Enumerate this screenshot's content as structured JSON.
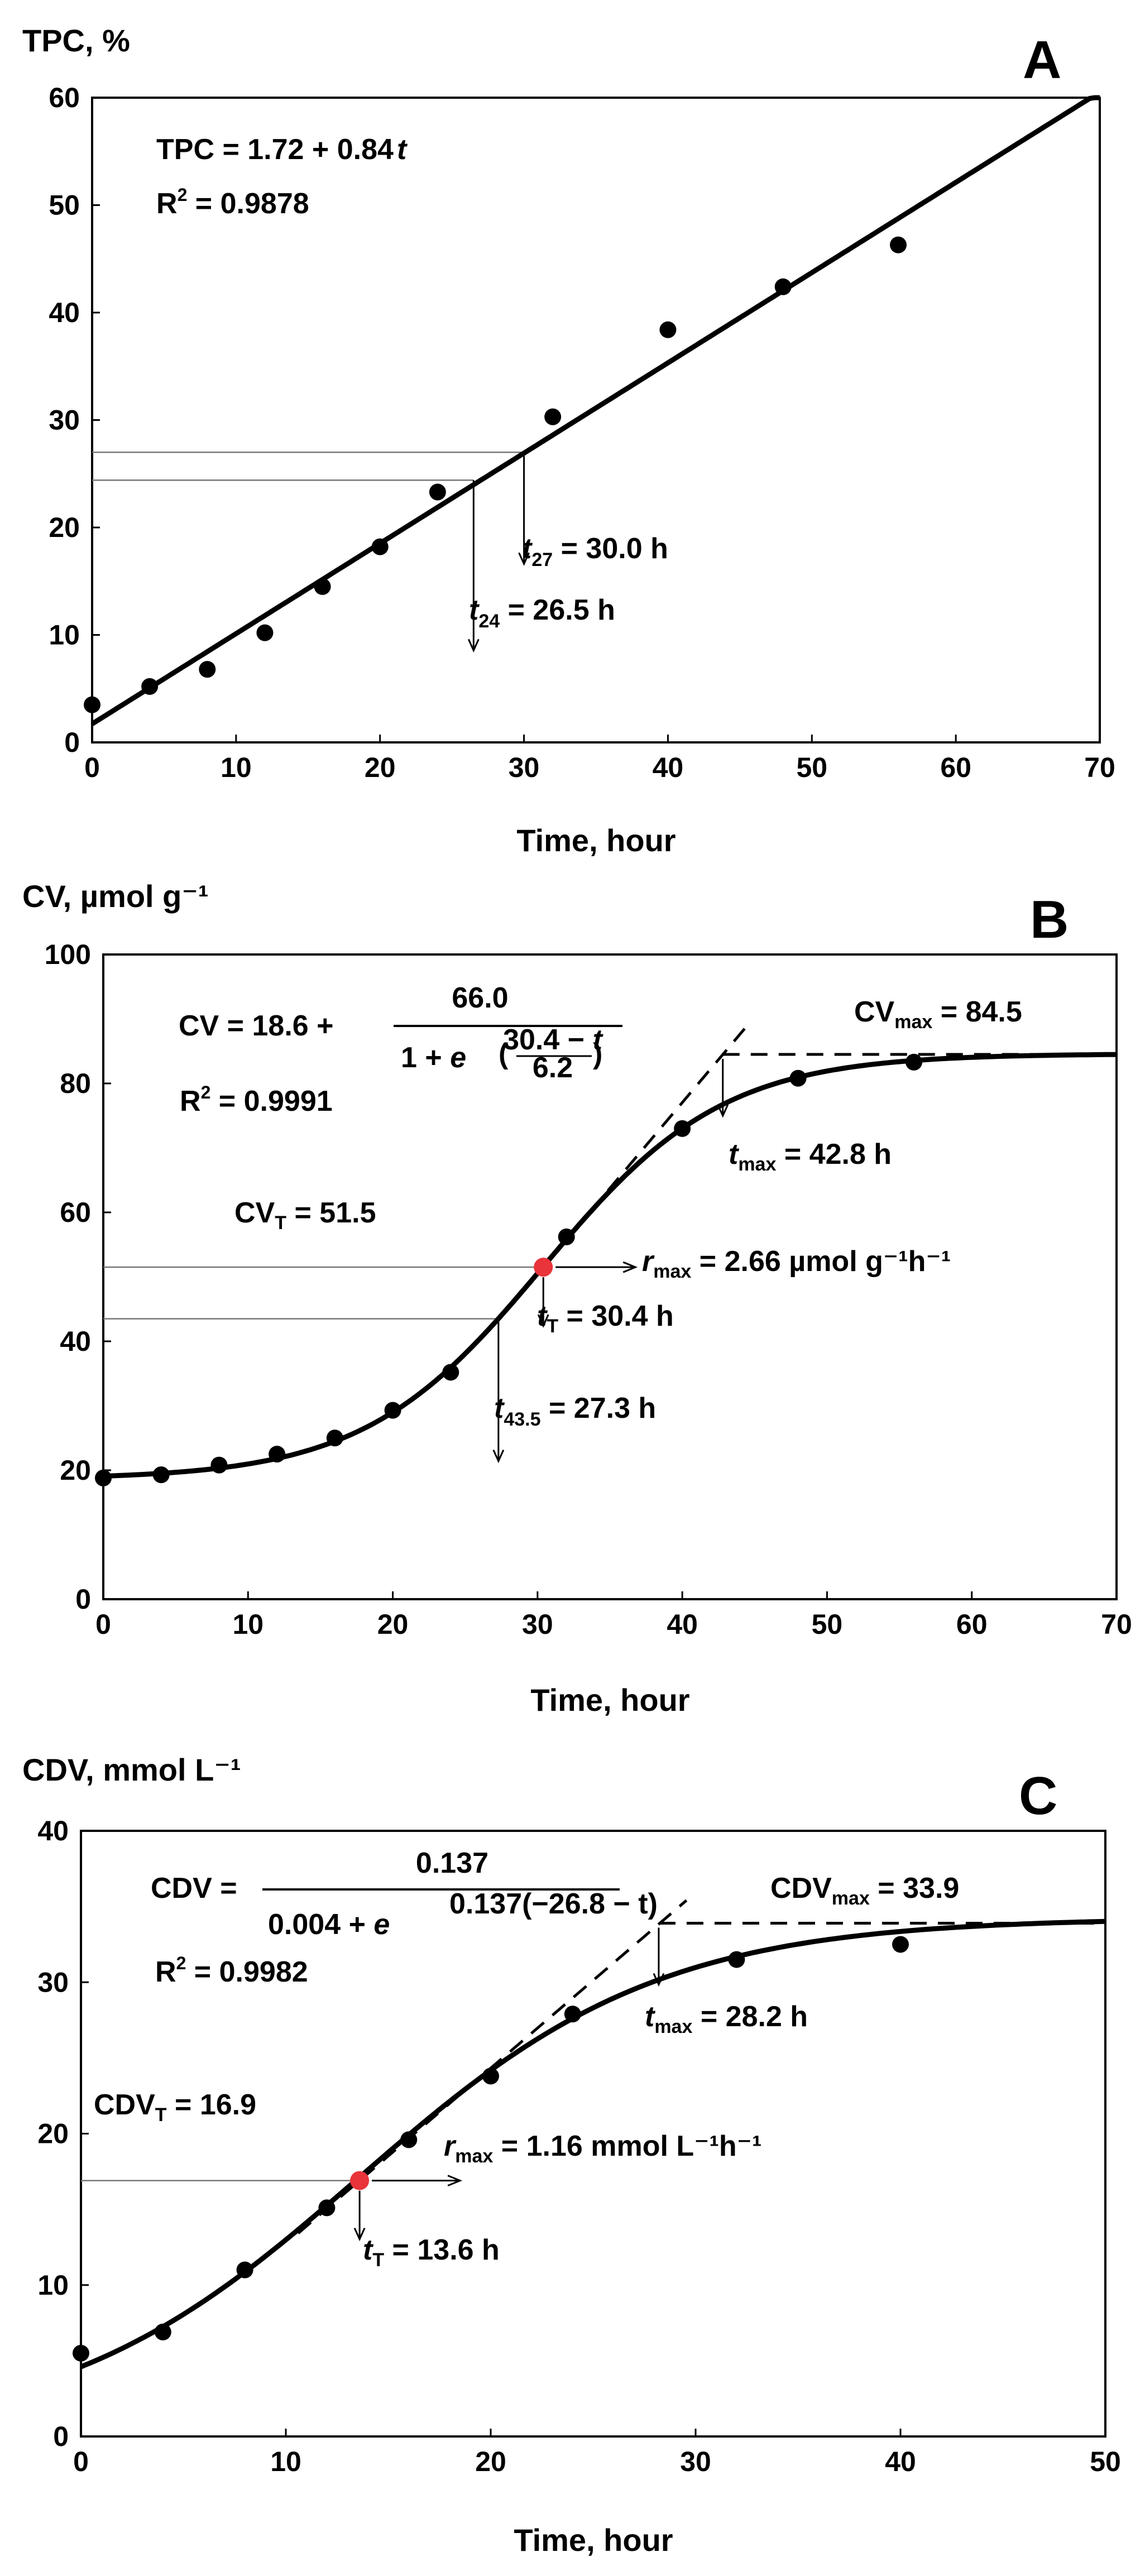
{
  "chart_data": [
    {
      "id": "A",
      "panel_label": "A",
      "type": "scatter",
      "ylabel": "TPC, %",
      "xlabel": "Time, hour",
      "xlim": [
        0,
        70
      ],
      "ylim": [
        0,
        60
      ],
      "xticks": [
        0,
        10,
        20,
        30,
        40,
        50,
        60,
        70
      ],
      "yticks": [
        0,
        10,
        20,
        30,
        40,
        50,
        60
      ],
      "points": {
        "x": [
          0,
          4,
          8,
          12,
          16,
          20,
          24,
          32,
          40,
          48,
          56
        ],
        "y": [
          3.5,
          5.2,
          6.8,
          10.2,
          14.5,
          18.2,
          23.3,
          30.3,
          38.4,
          42.4,
          46.3
        ]
      },
      "fit": {
        "model": "linear",
        "a": 1.72,
        "b": 0.84,
        "x_from": 0,
        "x_to": 70
      },
      "equation_lines": [
        "TPC = 1.72 + 0.84",
        "t"
      ],
      "r2_label": "R",
      "r2_value": " = 0.9878",
      "thresholds": [
        {
          "y": 27,
          "x": 30.0,
          "label_main": "t",
          "label_sub": "27",
          "label_rest": " = 30.0 h"
        },
        {
          "y": 24.4,
          "x": 26.5,
          "label_main": "t",
          "label_sub": "24",
          "label_rest": " = 26.5 h"
        }
      ]
    },
    {
      "id": "B",
      "panel_label": "B",
      "type": "scatter",
      "ylabel": "CV, µmol g⁻¹",
      "xlabel": "Time, hour",
      "xlim": [
        0,
        70
      ],
      "ylim": [
        0,
        100
      ],
      "xticks": [
        0,
        10,
        20,
        30,
        40,
        50,
        60,
        70
      ],
      "yticks": [
        0,
        20,
        40,
        60,
        80,
        100
      ],
      "points": {
        "x": [
          0,
          4,
          8,
          12,
          16,
          20,
          24,
          32,
          40,
          48,
          56
        ],
        "y": [
          18.8,
          19.3,
          20.8,
          22.5,
          25.0,
          29.3,
          35.2,
          56.2,
          73.0,
          80.8,
          83.3
        ]
      },
      "fit": {
        "model": "logistic",
        "base": 18.6,
        "amp": 66.0,
        "t0": 30.4,
        "s": 6.2,
        "x_from": 0,
        "x_to": 70
      },
      "equation": {
        "lhs": "CV  =  18.6 +",
        "numerator": "66.0",
        "denominator": "1 + ",
        "e": "e",
        "exp_num": "30.4 − ",
        "exp_t": "t",
        "exp_den": "6.2"
      },
      "r2_label": "R",
      "r2_value": " = 0.9991",
      "max": {
        "label": "CV",
        "sub": "max",
        "value": " = 84.5",
        "y": 84.5
      },
      "tmax": {
        "label": "t",
        "sub": "max",
        "value": " = 42.8 h",
        "x": 42.8
      },
      "inflection": {
        "x": 30.4,
        "y": 51.5,
        "label": "CV",
        "sub": "T",
        "value": " = 51.5",
        "t_label": "t",
        "t_sub": "T",
        "t_value": " = 30.4 h"
      },
      "rate": {
        "label": "r",
        "sub": "max",
        "value": " = 2.66 µmol g⁻¹h⁻¹",
        "slope": 2.66
      },
      "threshold": {
        "y": 43.5,
        "x": 27.3,
        "label_main": "t",
        "label_sub": "43.5",
        "label_rest": " = 27.3 h"
      }
    },
    {
      "id": "C",
      "panel_label": "C",
      "type": "scatter",
      "ylabel": "CDV, mmol L⁻¹",
      "xlabel": "Time, hour",
      "xlim": [
        0,
        50
      ],
      "ylim": [
        0,
        40
      ],
      "xticks": [
        0,
        10,
        20,
        30,
        40,
        50
      ],
      "yticks": [
        0,
        10,
        20,
        30,
        40
      ],
      "points": {
        "x": [
          0,
          4,
          8,
          12,
          16,
          20,
          24,
          32,
          40
        ],
        "y": [
          5.5,
          6.9,
          11.0,
          15.1,
          19.6,
          23.8,
          27.9,
          31.5,
          32.5
        ]
      },
      "fit": {
        "model": "logistic",
        "base": 0,
        "amp": 34.25,
        "t0": 13.6,
        "s": 7.3,
        "x_from": 0,
        "x_to": 50
      },
      "equation": {
        "lhs": "CDV =",
        "numerator": "0.137",
        "denominator": "0.004 + ",
        "e": "e",
        "exp": "0.137(−26.8 − t)"
      },
      "r2_label": "R",
      "r2_value": " = 0.9982",
      "max": {
        "label": "CDV",
        "sub": "max",
        "value": " = 33.9",
        "y": 33.9
      },
      "tmax": {
        "label": "t",
        "sub": "max",
        "value": " = 28.2 h",
        "x": 28.2
      },
      "inflection": {
        "x": 13.6,
        "y": 16.9,
        "label": "CDV",
        "sub": "T",
        "value": " = 16.9",
        "t_label": "t",
        "t_sub": "T",
        "t_value": " = 13.6 h"
      },
      "rate": {
        "label": "r",
        "sub": "max",
        "value": " = 1.16 mmol L⁻¹h⁻¹",
        "slope": 1.16
      }
    }
  ],
  "colors": {
    "marker": "#000000",
    "inflection": "#e8343a",
    "guide": "#777777"
  }
}
